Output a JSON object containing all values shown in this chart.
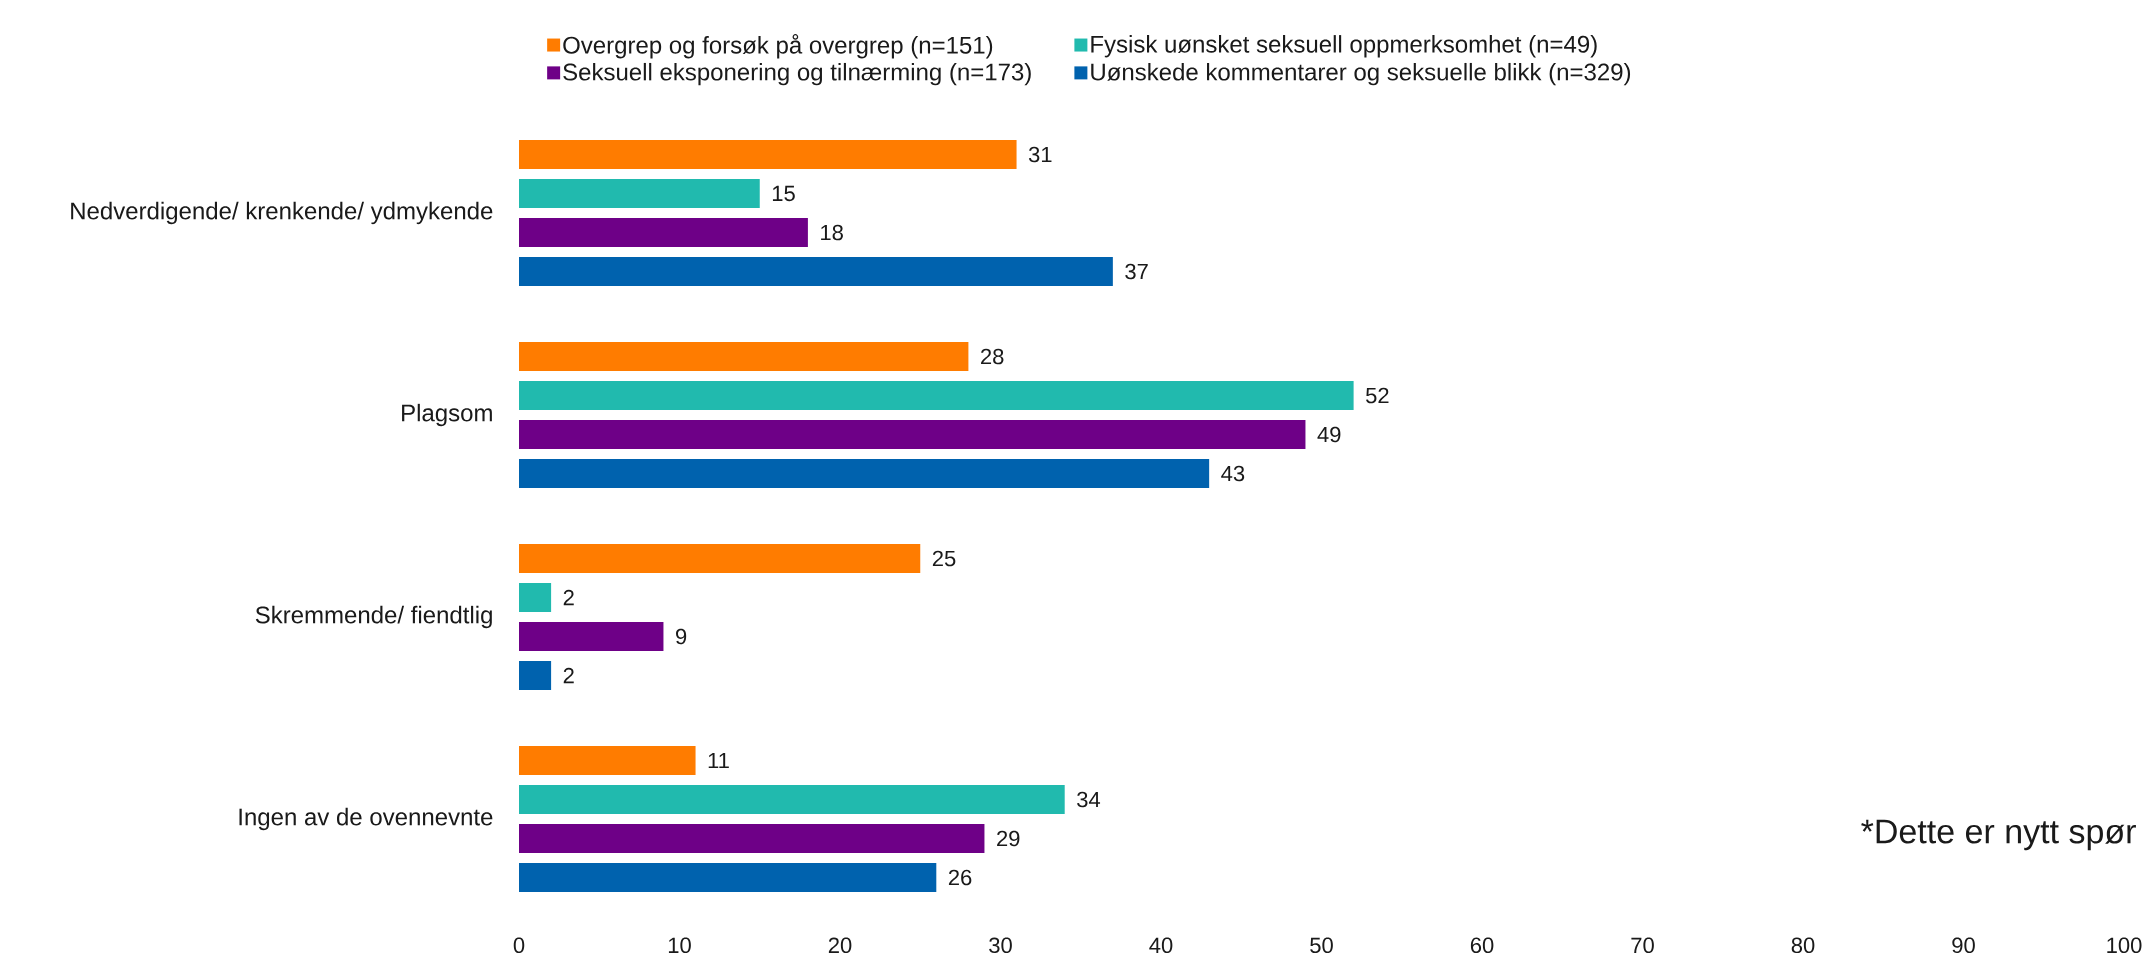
{
  "chart_data": {
    "type": "bar",
    "orientation": "horizontal",
    "categories": [
      "Nedverdigende/ krenkende/ ydmykende",
      "Plagsom",
      "Skremmende/ fiendtlig",
      "Ingen av de ovennevnte"
    ],
    "series": [
      {
        "name": "Overgrep og forsøk på overgrep (n=151)",
        "color": "#ff7c00",
        "values": [
          31,
          28,
          25,
          11
        ]
      },
      {
        "name": "Fysisk uønsket seksuell oppmerksomhet (n=49)",
        "color": "#21baae",
        "values": [
          15,
          52,
          2,
          34
        ]
      },
      {
        "name": "Seksuell eksponering og tilnærming (n=173)",
        "color": "#6e0087",
        "values": [
          18,
          49,
          9,
          29
        ]
      },
      {
        "name": "Uønskede kommentarer og seksuelle blikk (n=329)",
        "color": "#0062ae",
        "values": [
          37,
          43,
          2,
          26
        ]
      }
    ],
    "xlim": [
      0,
      100
    ],
    "xticks": [
      0,
      10,
      20,
      30,
      40,
      50,
      60,
      70,
      80,
      90,
      100
    ],
    "data_labels": true,
    "legend": "top",
    "annotations": [
      "*Dette er nytt spør"
    ]
  }
}
